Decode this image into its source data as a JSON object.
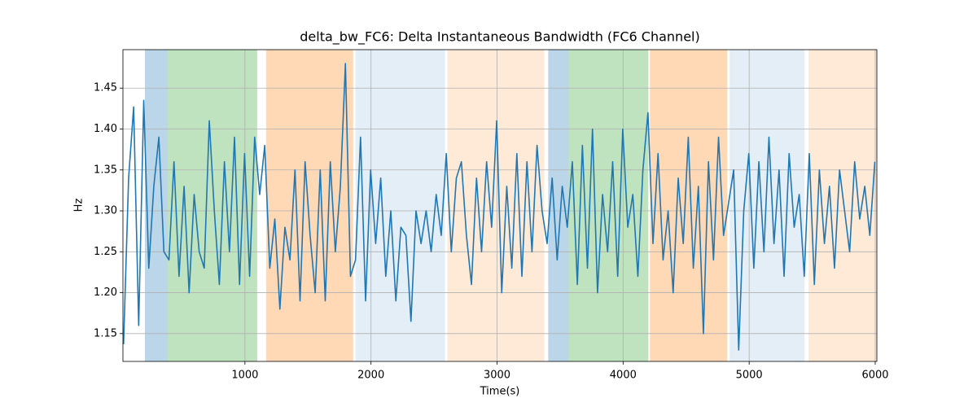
{
  "chart_data": {
    "type": "line",
    "title": "delta_bw_FC6: Delta Instantaneous Bandwidth (FC6 Channel)",
    "xlabel": "Time(s)",
    "ylabel": "Hz",
    "x": [
      37,
      77,
      117,
      157,
      197,
      237,
      277,
      317,
      357,
      397,
      437,
      477,
      517,
      557,
      597,
      637,
      677,
      717,
      757,
      797,
      837,
      877,
      917,
      957,
      997,
      1037,
      1077,
      1117,
      1157,
      1197,
      1237,
      1277,
      1317,
      1357,
      1397,
      1437,
      1477,
      1517,
      1557,
      1597,
      1637,
      1677,
      1717,
      1757,
      1797,
      1837,
      1877,
      1917,
      1957,
      1997,
      2037,
      2077,
      2117,
      2157,
      2197,
      2237,
      2277,
      2317,
      2357,
      2397,
      2437,
      2477,
      2517,
      2557,
      2597,
      2637,
      2677,
      2717,
      2757,
      2797,
      2837,
      2877,
      2917,
      2957,
      2997,
      3037,
      3077,
      3117,
      3157,
      3197,
      3237,
      3277,
      3317,
      3357,
      3397,
      3437,
      3477,
      3517,
      3557,
      3597,
      3637,
      3677,
      3717,
      3757,
      3797,
      3837,
      3877,
      3917,
      3957,
      3997,
      4037,
      4077,
      4117,
      4157,
      4197,
      4237,
      4277,
      4317,
      4357,
      4397,
      4437,
      4477,
      4517,
      4557,
      4597,
      4637,
      4677,
      4717,
      4757,
      4797,
      4837,
      4877,
      4917,
      4957,
      4997,
      5037,
      5077,
      5117,
      5157,
      5197,
      5237,
      5277,
      5317,
      5357,
      5397,
      5437,
      5477,
      5517,
      5557,
      5597,
      5637,
      5677,
      5717,
      5757,
      5797,
      5837,
      5877,
      5917,
      5957,
      5997
    ],
    "series": [
      {
        "color": "#1f77b4",
        "values": [
          1.137,
          1.34,
          1.427,
          1.16,
          1.435,
          1.23,
          1.33,
          1.39,
          1.25,
          1.24,
          1.36,
          1.22,
          1.33,
          1.2,
          1.32,
          1.25,
          1.23,
          1.41,
          1.3,
          1.21,
          1.36,
          1.25,
          1.39,
          1.21,
          1.37,
          1.22,
          1.39,
          1.32,
          1.38,
          1.23,
          1.29,
          1.18,
          1.28,
          1.24,
          1.35,
          1.19,
          1.36,
          1.27,
          1.2,
          1.35,
          1.19,
          1.36,
          1.25,
          1.33,
          1.48,
          1.22,
          1.24,
          1.39,
          1.19,
          1.35,
          1.26,
          1.34,
          1.22,
          1.3,
          1.19,
          1.28,
          1.27,
          1.165,
          1.3,
          1.26,
          1.3,
          1.25,
          1.32,
          1.27,
          1.37,
          1.25,
          1.34,
          1.36,
          1.27,
          1.21,
          1.34,
          1.25,
          1.36,
          1.28,
          1.41,
          1.2,
          1.33,
          1.23,
          1.37,
          1.22,
          1.36,
          1.25,
          1.38,
          1.3,
          1.26,
          1.34,
          1.24,
          1.33,
          1.28,
          1.36,
          1.21,
          1.38,
          1.23,
          1.4,
          1.2,
          1.32,
          1.25,
          1.36,
          1.22,
          1.4,
          1.28,
          1.32,
          1.22,
          1.35,
          1.42,
          1.26,
          1.37,
          1.24,
          1.3,
          1.2,
          1.34,
          1.26,
          1.39,
          1.23,
          1.33,
          1.15,
          1.36,
          1.24,
          1.39,
          1.27,
          1.31,
          1.35,
          1.13,
          1.3,
          1.37,
          1.23,
          1.36,
          1.25,
          1.39,
          1.26,
          1.35,
          1.22,
          1.37,
          1.28,
          1.32,
          1.22,
          1.37,
          1.21,
          1.35,
          1.26,
          1.33,
          1.23,
          1.35,
          1.3,
          1.25,
          1.36,
          1.29,
          1.33,
          1.27,
          1.36
        ]
      }
    ],
    "spans": [
      {
        "start": 206,
        "end": 387,
        "color": "rgba(31,119,180,0.3)"
      },
      {
        "start": 387,
        "end": 1097,
        "color": "rgba(44,160,44,0.3)"
      },
      {
        "start": 1168,
        "end": 1858,
        "color": "rgba(255,127,14,0.3)"
      },
      {
        "start": 1877,
        "end": 2587,
        "color": "rgba(31,119,180,0.12)"
      },
      {
        "start": 2606,
        "end": 3374,
        "color": "rgba(255,127,14,0.16)"
      },
      {
        "start": 3406,
        "end": 3568,
        "color": "rgba(31,119,180,0.3)"
      },
      {
        "start": 3568,
        "end": 4200,
        "color": "rgba(44,160,44,0.3)"
      },
      {
        "start": 4213,
        "end": 4826,
        "color": "rgba(255,127,14,0.3)"
      },
      {
        "start": 4845,
        "end": 5439,
        "color": "rgba(31,119,180,0.12)"
      },
      {
        "start": 5471,
        "end": 6013,
        "color": "rgba(255,127,14,0.16)"
      }
    ],
    "xlim": [
      32,
      6013
    ],
    "ylim": [
      1.116,
      1.497
    ],
    "xticks": [
      1000,
      2000,
      3000,
      4000,
      5000,
      6000
    ],
    "yticks": [
      1.15,
      {
        "value": 1.2,
        "label": "1.20"
      },
      1.25,
      {
        "value": 1.3,
        "label": "1.30"
      },
      1.35,
      {
        "value": 1.4,
        "label": "1.40"
      },
      1.45
    ],
    "grid": true
  }
}
